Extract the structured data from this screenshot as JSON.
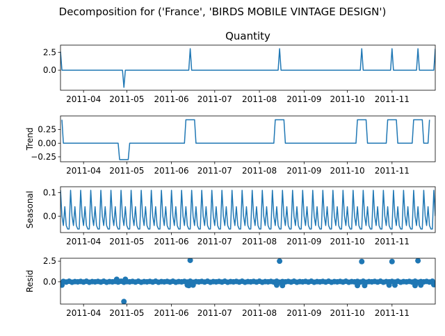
{
  "figure": {
    "suptitle": "Decomposition for ('France', 'BIRDS MOBILE VINTAGE DESIGN')"
  },
  "colors": {
    "line": "#1f77b4",
    "axis": "#000000",
    "background": "#ffffff"
  },
  "x_axis": {
    "type": "date",
    "range": [
      "2011-03-16",
      "2011-12-01"
    ],
    "ticks": [
      {
        "date": "2011-04-01",
        "label": "2011-04"
      },
      {
        "date": "2011-05-01",
        "label": "2011-05"
      },
      {
        "date": "2011-06-01",
        "label": "2011-06"
      },
      {
        "date": "2011-07-01",
        "label": "2011-07"
      },
      {
        "date": "2011-08-01",
        "label": "2011-08"
      },
      {
        "date": "2011-09-01",
        "label": "2011-09"
      },
      {
        "date": "2011-10-01",
        "label": "2011-10"
      },
      {
        "date": "2011-11-01",
        "label": "2011-11"
      }
    ]
  },
  "chart_data": [
    {
      "type": "line",
      "panel": "observed",
      "title": "Quantity",
      "ylabel": "",
      "ylim": [
        -2.8,
        3.5
      ],
      "yticks": [
        {
          "v": 0,
          "label": "0.0"
        },
        {
          "v": 2.5,
          "label": "2.5"
        }
      ],
      "series": [
        {
          "x": [
            "2011-03-16",
            "2011-03-17",
            "2011-04-28",
            "2011-04-29",
            "2011-04-30",
            "2011-06-13",
            "2011-06-14",
            "2011-06-15",
            "2011-08-14",
            "2011-08-15",
            "2011-08-16",
            "2011-10-10",
            "2011-10-11",
            "2011-10-12",
            "2011-10-31",
            "2011-11-01",
            "2011-11-02",
            "2011-11-18",
            "2011-11-19",
            "2011-11-20",
            "2011-11-30",
            "2011-12-01"
          ],
          "y": [
            2.6,
            0,
            0,
            -2.4,
            0,
            0,
            3.0,
            0,
            0,
            3.0,
            0,
            0,
            3.0,
            0,
            0,
            3.0,
            0,
            0,
            3.0,
            0,
            0,
            3.0
          ]
        }
      ]
    },
    {
      "type": "line",
      "panel": "trend",
      "ylabel": "Trend",
      "ylim": [
        -0.34,
        0.5
      ],
      "yticks": [
        {
          "v": -0.25,
          "label": "−0.25"
        },
        {
          "v": 0,
          "label": "0.00"
        },
        {
          "v": 0.25,
          "label": "0.25"
        }
      ],
      "series": [
        {
          "x": [
            "2011-03-17",
            "2011-03-18",
            "2011-04-25",
            "2011-04-26",
            "2011-05-02",
            "2011-05-03",
            "2011-06-10",
            "2011-06-11",
            "2011-06-17",
            "2011-06-18",
            "2011-08-11",
            "2011-08-12",
            "2011-08-18",
            "2011-08-19",
            "2011-10-07",
            "2011-10-08",
            "2011-10-14",
            "2011-10-15",
            "2011-10-28",
            "2011-10-29",
            "2011-11-04",
            "2011-11-05",
            "2011-11-15",
            "2011-11-16",
            "2011-11-22",
            "2011-11-23",
            "2011-11-26",
            "2011-11-27"
          ],
          "y": [
            0.43,
            0,
            0,
            -0.3,
            -0.3,
            0,
            0,
            0.43,
            0.43,
            0,
            0,
            0.43,
            0.43,
            0,
            0,
            0.43,
            0.43,
            0,
            0,
            0.43,
            0.43,
            0,
            0,
            0.43,
            0.43,
            0,
            0,
            0.43
          ]
        }
      ]
    },
    {
      "type": "line",
      "panel": "seasonal",
      "ylabel": "Seasonal",
      "ylim": [
        -0.07,
        0.125
      ],
      "yticks": [
        {
          "v": 0,
          "label": "0.0"
        },
        {
          "v": 0.1,
          "label": "0.1"
        }
      ],
      "pattern": {
        "start": "2011-03-16",
        "end": "2011-12-01",
        "period_days": 7,
        "cycle": [
          0.11,
          0.0,
          -0.04,
          0.04,
          -0.04,
          -0.055,
          -0.055
        ]
      }
    },
    {
      "type": "scatter",
      "panel": "resid",
      "ylabel": "Resid",
      "ylim": [
        -2.7,
        2.85
      ],
      "yticks": [
        {
          "v": 0,
          "label": "0.0"
        },
        {
          "v": 2.5,
          "label": "2.5"
        }
      ],
      "baseline": 0,
      "outliers": [
        {
          "x": "2011-03-17",
          "y": -0.4
        },
        {
          "x": "2011-04-24",
          "y": 0.3
        },
        {
          "x": "2011-04-29",
          "y": -2.4
        },
        {
          "x": "2011-04-30",
          "y": 0.3
        },
        {
          "x": "2011-06-14",
          "y": 2.6
        },
        {
          "x": "2011-06-12",
          "y": -0.4
        },
        {
          "x": "2011-06-13",
          "y": -0.45
        },
        {
          "x": "2011-06-16",
          "y": -0.4
        },
        {
          "x": "2011-08-15",
          "y": 2.5
        },
        {
          "x": "2011-08-13",
          "y": -0.4
        },
        {
          "x": "2011-08-17",
          "y": -0.45
        },
        {
          "x": "2011-10-11",
          "y": 2.45
        },
        {
          "x": "2011-10-08",
          "y": -0.45
        },
        {
          "x": "2011-10-13",
          "y": -0.45
        },
        {
          "x": "2011-11-01",
          "y": 2.45
        },
        {
          "x": "2011-10-30",
          "y": -0.4
        },
        {
          "x": "2011-11-03",
          "y": -0.4
        },
        {
          "x": "2011-11-19",
          "y": 2.55
        },
        {
          "x": "2011-11-17",
          "y": -0.45
        },
        {
          "x": "2011-11-21",
          "y": -0.4
        },
        {
          "x": "2011-11-30",
          "y": -0.35
        }
      ],
      "pattern": {
        "start": "2011-03-18",
        "end": "2011-11-29",
        "step_days": 2,
        "cycle": [
          0.04,
          -0.03,
          0.06,
          -0.05,
          0.02,
          -0.01
        ]
      }
    }
  ]
}
